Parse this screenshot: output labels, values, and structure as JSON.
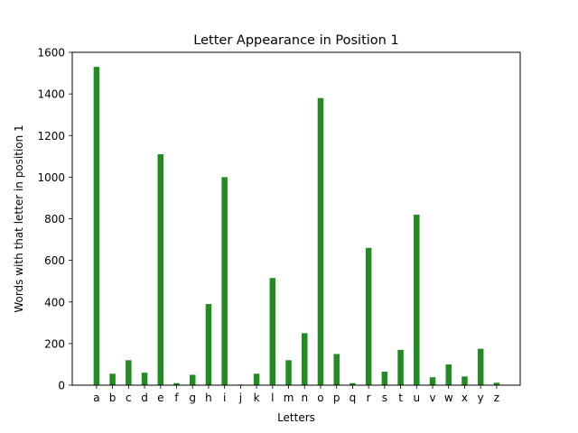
{
  "chart_data": {
    "type": "bar",
    "title": "Letter Appearance in Position 1",
    "xlabel": "Letters",
    "ylabel": "Words with that letter in position 1",
    "ylim": [
      0,
      1600
    ],
    "yticks": [
      0,
      200,
      400,
      600,
      800,
      1000,
      1200,
      1400,
      1600
    ],
    "grid": false,
    "bar_color": "#228b22",
    "categories": [
      "a",
      "b",
      "c",
      "d",
      "e",
      "f",
      "g",
      "h",
      "i",
      "j",
      "k",
      "l",
      "m",
      "n",
      "o",
      "p",
      "q",
      "r",
      "s",
      "t",
      "u",
      "v",
      "w",
      "x",
      "y",
      "z"
    ],
    "values": [
      1530,
      55,
      120,
      60,
      1110,
      10,
      50,
      390,
      1000,
      3,
      55,
      515,
      120,
      250,
      1380,
      150,
      10,
      660,
      65,
      170,
      820,
      38,
      100,
      42,
      175,
      12
    ]
  }
}
